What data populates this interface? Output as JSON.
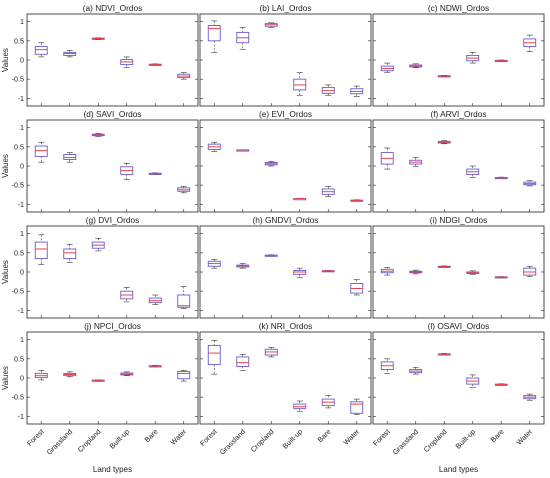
{
  "figure": {
    "ylabel": "Values",
    "xlabel": "Land types",
    "categories": [
      "Forest",
      "Grassland",
      "Cropland",
      "Built-up",
      "Bare",
      "Water"
    ],
    "ylim": [
      -1.2,
      1.2
    ],
    "yticks": [
      "-1",
      "-0.5",
      "0",
      "0.5",
      "1"
    ],
    "box_color": "#6a5acd",
    "median_color": "#e8434a",
    "frame_color": "#222222"
  },
  "chart_data": [
    {
      "type": "box",
      "title": "(a) NDVI_Ordos",
      "series": [
        {
          "category": "Forest",
          "whisker_low": 0.08,
          "q1": 0.15,
          "median": 0.27,
          "q3": 0.35,
          "whisker_high": 0.45
        },
        {
          "category": "Grassland",
          "whisker_low": 0.08,
          "q1": 0.12,
          "median": 0.17,
          "q3": 0.2,
          "whisker_high": 0.25
        },
        {
          "category": "Cropland",
          "whisker_low": 0.53,
          "q1": 0.55,
          "median": 0.56,
          "q3": 0.57,
          "whisker_high": 0.58
        },
        {
          "category": "Built-up",
          "whisker_low": -0.2,
          "q1": -0.12,
          "median": -0.05,
          "q3": 0.01,
          "whisker_high": 0.08
        },
        {
          "category": "Bare",
          "whisker_low": -0.14,
          "q1": -0.13,
          "median": -0.12,
          "q3": -0.11,
          "whisker_high": -0.1
        },
        {
          "category": "Water",
          "whisker_low": -0.5,
          "q1": -0.46,
          "median": -0.42,
          "q3": -0.37,
          "whisker_high": -0.33
        }
      ]
    },
    {
      "type": "box",
      "title": "(b) LAI_Ordos",
      "series": [
        {
          "category": "Forest",
          "whisker_low": 0.2,
          "q1": 0.5,
          "median": 0.82,
          "q3": 0.9,
          "whisker_high": 1.02
        },
        {
          "category": "Grassland",
          "whisker_low": 0.28,
          "q1": 0.45,
          "median": 0.58,
          "q3": 0.72,
          "whisker_high": 0.85
        },
        {
          "category": "Cropland",
          "whisker_low": 0.85,
          "q1": 0.88,
          "median": 0.92,
          "q3": 0.95,
          "whisker_high": 0.97
        },
        {
          "category": "Built-up",
          "whisker_low": -0.92,
          "q1": -0.78,
          "median": -0.65,
          "q3": -0.5,
          "whisker_high": -0.33
        },
        {
          "category": "Bare",
          "whisker_low": -0.92,
          "q1": -0.87,
          "median": -0.8,
          "q3": -0.72,
          "whisker_high": -0.65
        },
        {
          "category": "Water",
          "whisker_low": -0.95,
          "q1": -0.88,
          "median": -0.82,
          "q3": -0.75,
          "whisker_high": -0.68
        }
      ]
    },
    {
      "type": "box",
      "title": "(c) NDWI_Ordos",
      "series": [
        {
          "category": "Forest",
          "whisker_low": -0.32,
          "q1": -0.28,
          "median": -0.22,
          "q3": -0.16,
          "whisker_high": -0.08
        },
        {
          "category": "Grassland",
          "whisker_low": -0.2,
          "q1": -0.18,
          "median": -0.16,
          "q3": -0.13,
          "whisker_high": -0.1
        },
        {
          "category": "Cropland",
          "whisker_low": -0.44,
          "q1": -0.43,
          "median": -0.42,
          "q3": -0.41,
          "whisker_high": -0.4
        },
        {
          "category": "Built-up",
          "whisker_low": -0.08,
          "q1": -0.02,
          "median": 0.05,
          "q3": 0.12,
          "whisker_high": 0.2
        },
        {
          "category": "Bare",
          "whisker_low": -0.04,
          "q1": -0.03,
          "median": -0.02,
          "q3": -0.01,
          "whisker_high": 0.0
        },
        {
          "category": "Water",
          "whisker_low": 0.22,
          "q1": 0.35,
          "median": 0.45,
          "q3": 0.55,
          "whisker_high": 0.65
        }
      ]
    },
    {
      "type": "box",
      "title": "(d) SAVI_Ordos",
      "series": [
        {
          "category": "Forest",
          "whisker_low": 0.1,
          "q1": 0.25,
          "median": 0.4,
          "q3": 0.52,
          "whisker_high": 0.62
        },
        {
          "category": "Grassland",
          "whisker_low": 0.1,
          "q1": 0.17,
          "median": 0.22,
          "q3": 0.3,
          "whisker_high": 0.35
        },
        {
          "category": "Cropland",
          "whisker_low": 0.77,
          "q1": 0.79,
          "median": 0.81,
          "q3": 0.83,
          "whisker_high": 0.85
        },
        {
          "category": "Built-up",
          "whisker_low": -0.35,
          "q1": -0.22,
          "median": -0.12,
          "q3": -0.02,
          "whisker_high": 0.07
        },
        {
          "category": "Bare",
          "whisker_low": -0.22,
          "q1": -0.21,
          "median": -0.2,
          "q3": -0.19,
          "whisker_high": -0.18
        },
        {
          "category": "Water",
          "whisker_low": -0.7,
          "q1": -0.66,
          "median": -0.62,
          "q3": -0.57,
          "whisker_high": -0.53
        }
      ]
    },
    {
      "type": "box",
      "title": "(e) EVI_Ordos",
      "series": [
        {
          "category": "Forest",
          "whisker_low": 0.38,
          "q1": 0.43,
          "median": 0.5,
          "q3": 0.57,
          "whisker_high": 0.62
        },
        {
          "category": "Grassland",
          "whisker_low": 0.42,
          "q1": 0.42,
          "median": 0.42,
          "q3": 0.42,
          "whisker_high": 0.42
        },
        {
          "category": "Cropland",
          "whisker_low": 0.0,
          "q1": 0.03,
          "median": 0.06,
          "q3": 0.09,
          "whisker_high": 0.12
        },
        {
          "category": "Built-up",
          "whisker_low": -0.85,
          "q1": -0.85,
          "median": -0.85,
          "q3": -0.85,
          "whisker_high": -0.85
        },
        {
          "category": "Bare",
          "whisker_low": -0.8,
          "q1": -0.74,
          "median": -0.67,
          "q3": -0.6,
          "whisker_high": -0.53
        },
        {
          "category": "Water",
          "whisker_low": -0.92,
          "q1": -0.91,
          "median": -0.9,
          "q3": -0.89,
          "whisker_high": -0.88
        }
      ]
    },
    {
      "type": "box",
      "title": "(f) ARVI_Ordos",
      "series": [
        {
          "category": "Forest",
          "whisker_low": -0.08,
          "q1": 0.05,
          "median": 0.2,
          "q3": 0.35,
          "whisker_high": 0.47
        },
        {
          "category": "Grassland",
          "whisker_low": -0.02,
          "q1": 0.05,
          "median": 0.1,
          "q3": 0.15,
          "whisker_high": 0.22
        },
        {
          "category": "Cropland",
          "whisker_low": 0.58,
          "q1": 0.6,
          "median": 0.62,
          "q3": 0.64,
          "whisker_high": 0.66
        },
        {
          "category": "Built-up",
          "whisker_low": -0.3,
          "q1": -0.22,
          "median": -0.15,
          "q3": -0.08,
          "whisker_high": 0.0
        },
        {
          "category": "Bare",
          "whisker_low": -0.33,
          "q1": -0.32,
          "median": -0.31,
          "q3": -0.3,
          "whisker_high": -0.29
        },
        {
          "category": "Water",
          "whisker_low": -0.52,
          "q1": -0.49,
          "median": -0.46,
          "q3": -0.42,
          "whisker_high": -0.38
        }
      ]
    },
    {
      "type": "box",
      "title": "(g) DVI_Ordos",
      "series": [
        {
          "category": "Forest",
          "whisker_low": 0.2,
          "q1": 0.35,
          "median": 0.6,
          "q3": 0.78,
          "whisker_high": 0.97
        },
        {
          "category": "Grassland",
          "whisker_low": 0.25,
          "q1": 0.35,
          "median": 0.5,
          "q3": 0.6,
          "whisker_high": 0.72
        },
        {
          "category": "Cropland",
          "whisker_low": 0.55,
          "q1": 0.62,
          "median": 0.7,
          "q3": 0.78,
          "whisker_high": 0.88
        },
        {
          "category": "Built-up",
          "whisker_low": -0.78,
          "q1": -0.7,
          "median": -0.6,
          "q3": -0.5,
          "whisker_high": -0.4
        },
        {
          "category": "Bare",
          "whisker_low": -0.85,
          "q1": -0.8,
          "median": -0.75,
          "q3": -0.68,
          "whisker_high": -0.6
        },
        {
          "category": "Water",
          "whisker_low": -0.95,
          "q1": -0.92,
          "median": -0.88,
          "q3": -0.6,
          "whisker_high": -0.38
        }
      ]
    },
    {
      "type": "box",
      "title": "(h) GNDVI_Ordos",
      "series": [
        {
          "category": "Forest",
          "whisker_low": 0.1,
          "q1": 0.15,
          "median": 0.22,
          "q3": 0.28,
          "whisker_high": 0.33
        },
        {
          "category": "Grassland",
          "whisker_low": 0.1,
          "q1": 0.13,
          "median": 0.16,
          "q3": 0.18,
          "whisker_high": 0.22
        },
        {
          "category": "Cropland",
          "whisker_low": 0.41,
          "q1": 0.42,
          "median": 0.43,
          "q3": 0.44,
          "whisker_high": 0.45
        },
        {
          "category": "Built-up",
          "whisker_low": -0.15,
          "q1": -0.06,
          "median": 0.0,
          "q3": 0.04,
          "whisker_high": 0.1
        },
        {
          "category": "Bare",
          "whisker_low": 0.02,
          "q1": 0.025,
          "median": 0.03,
          "q3": 0.035,
          "whisker_high": 0.04
        },
        {
          "category": "Water",
          "whisker_low": -0.6,
          "q1": -0.55,
          "median": -0.43,
          "q3": -0.3,
          "whisker_high": -0.2
        }
      ]
    },
    {
      "type": "box",
      "title": "(i) NDGI_Ordos",
      "series": [
        {
          "category": "Forest",
          "whisker_low": -0.08,
          "q1": -0.02,
          "median": 0.02,
          "q3": 0.07,
          "whisker_high": 0.12
        },
        {
          "category": "Grassland",
          "whisker_low": -0.05,
          "q1": -0.02,
          "median": 0.0,
          "q3": 0.02,
          "whisker_high": 0.05
        },
        {
          "category": "Cropland",
          "whisker_low": 0.12,
          "q1": 0.13,
          "median": 0.14,
          "q3": 0.15,
          "whisker_high": 0.16
        },
        {
          "category": "Built-up",
          "whisker_low": -0.06,
          "q1": -0.04,
          "median": -0.02,
          "q3": 0.0,
          "whisker_high": 0.03
        },
        {
          "category": "Bare",
          "whisker_low": -0.14,
          "q1": -0.135,
          "median": -0.13,
          "q3": -0.125,
          "whisker_high": -0.12
        },
        {
          "category": "Water",
          "whisker_low": -0.12,
          "q1": -0.08,
          "median": 0.0,
          "q3": 0.1,
          "whisker_high": 0.15
        }
      ]
    },
    {
      "type": "box",
      "title": "(j) NPCI_Ordos",
      "series": [
        {
          "category": "Forest",
          "whisker_low": -0.05,
          "q1": 0.01,
          "median": 0.06,
          "q3": 0.12,
          "whisker_high": 0.2
        },
        {
          "category": "Grassland",
          "whisker_low": 0.03,
          "q1": 0.06,
          "median": 0.09,
          "q3": 0.12,
          "whisker_high": 0.16
        },
        {
          "category": "Cropland",
          "whisker_low": -0.07,
          "q1": -0.065,
          "median": -0.06,
          "q3": -0.055,
          "whisker_high": -0.05
        },
        {
          "category": "Built-up",
          "whisker_low": 0.06,
          "q1": 0.08,
          "median": 0.1,
          "q3": 0.13,
          "whisker_high": 0.16
        },
        {
          "category": "Bare",
          "whisker_low": 0.29,
          "q1": 0.3,
          "median": 0.31,
          "q3": 0.32,
          "whisker_high": 0.33
        },
        {
          "category": "Water",
          "whisker_low": -0.08,
          "q1": -0.02,
          "median": 0.12,
          "q3": 0.17,
          "whisker_high": 0.2
        }
      ]
    },
    {
      "type": "box",
      "title": "(k) NRI_Ordos",
      "series": [
        {
          "category": "Forest",
          "whisker_low": 0.1,
          "q1": 0.35,
          "median": 0.65,
          "q3": 0.85,
          "whisker_high": 0.98
        },
        {
          "category": "Grassland",
          "whisker_low": 0.2,
          "q1": 0.3,
          "median": 0.4,
          "q3": 0.55,
          "whisker_high": 0.62
        },
        {
          "category": "Cropland",
          "whisker_low": 0.55,
          "q1": 0.6,
          "median": 0.68,
          "q3": 0.75,
          "whisker_high": 0.8
        },
        {
          "category": "Built-up",
          "whisker_low": -0.88,
          "q1": -0.8,
          "median": -0.75,
          "q3": -0.68,
          "whisker_high": -0.6
        },
        {
          "category": "Bare",
          "whisker_low": -0.78,
          "q1": -0.72,
          "median": -0.63,
          "q3": -0.55,
          "whisker_high": -0.45
        },
        {
          "category": "Water",
          "whisker_low": -0.95,
          "q1": -0.92,
          "median": -0.68,
          "q3": -0.62,
          "whisker_high": -0.55
        }
      ]
    },
    {
      "type": "box",
      "title": "(l) OSAVI_Ordos",
      "series": [
        {
          "category": "Forest",
          "whisker_low": 0.12,
          "q1": 0.22,
          "median": 0.32,
          "q3": 0.42,
          "whisker_high": 0.5
        },
        {
          "category": "Grassland",
          "whisker_low": 0.1,
          "q1": 0.14,
          "median": 0.18,
          "q3": 0.22,
          "whisker_high": 0.28
        },
        {
          "category": "Cropland",
          "whisker_low": 0.6,
          "q1": 0.61,
          "median": 0.62,
          "q3": 0.63,
          "whisker_high": 0.64
        },
        {
          "category": "Built-up",
          "whisker_low": -0.25,
          "q1": -0.16,
          "median": -0.08,
          "q3": 0.0,
          "whisker_high": 0.08
        },
        {
          "category": "Bare",
          "whisker_low": -0.19,
          "q1": -0.18,
          "median": -0.17,
          "q3": -0.16,
          "whisker_high": -0.15
        },
        {
          "category": "Water",
          "whisker_low": -0.58,
          "q1": -0.54,
          "median": -0.5,
          "q3": -0.46,
          "whisker_high": -0.42
        }
      ]
    }
  ]
}
